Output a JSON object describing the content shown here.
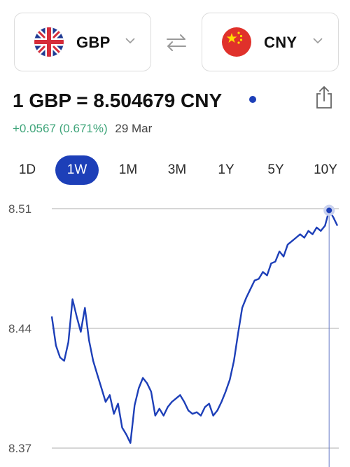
{
  "converter": {
    "from": {
      "code": "GBP",
      "flag": "uk-flag"
    },
    "to": {
      "code": "CNY",
      "flag": "china-flag"
    },
    "swap_icon": "swap-arrows-icon"
  },
  "rate": {
    "title": "1 GBP = 8.504679 CNY",
    "change": "+0.0567 (0.671%)",
    "date": "29 Mar",
    "change_color": "#3fa57a"
  },
  "tabs": [
    {
      "label": "1D",
      "active": false
    },
    {
      "label": "1W",
      "active": true
    },
    {
      "label": "1M",
      "active": false
    },
    {
      "label": "3M",
      "active": false
    },
    {
      "label": "1Y",
      "active": false
    },
    {
      "label": "5Y",
      "active": false
    },
    {
      "label": "10Y",
      "active": false
    }
  ],
  "colors": {
    "accent": "#1d3fb8",
    "positive": "#3fa57a"
  },
  "chart_data": {
    "type": "line",
    "yticks": [
      "8.51",
      "8.44",
      "8.37"
    ],
    "ylim": [
      8.37,
      8.51
    ],
    "grid": true,
    "series": [
      {
        "values": [
          8.447,
          8.43,
          8.423,
          8.421,
          8.432,
          8.457,
          8.447,
          8.438,
          8.452,
          8.433,
          8.421,
          8.413,
          8.405,
          8.397,
          8.401,
          8.39,
          8.396,
          8.382,
          8.378,
          8.373,
          8.395,
          8.405,
          8.411,
          8.408,
          8.403,
          8.389,
          8.393,
          8.389,
          8.394,
          8.397,
          8.399,
          8.401,
          8.397,
          8.392,
          8.39,
          8.391,
          8.389,
          8.394,
          8.396,
          8.389,
          8.392,
          8.397,
          8.403,
          8.41,
          8.421,
          8.437,
          8.452,
          8.458,
          8.463,
          8.468,
          8.469,
          8.473,
          8.471,
          8.478,
          8.479,
          8.485,
          8.482,
          8.489,
          8.491,
          8.493,
          8.495,
          8.493,
          8.497,
          8.495,
          8.499,
          8.497,
          8.5,
          8.509,
          8.505,
          8.5
        ]
      }
    ]
  }
}
